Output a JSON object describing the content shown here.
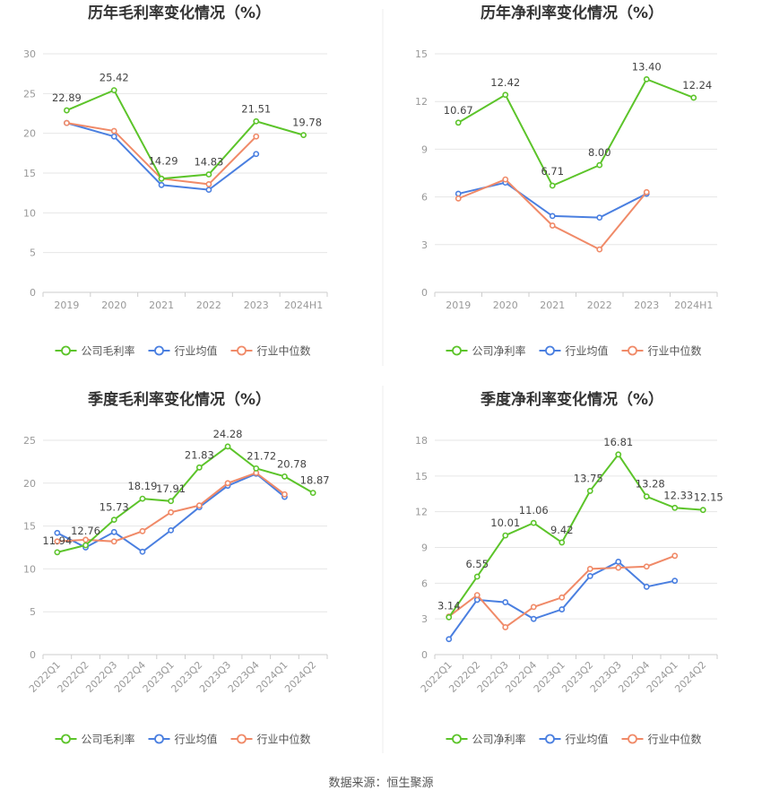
{
  "source_label": "数据来源：恒生聚源",
  "colors": {
    "company": "#5cc42a",
    "industry_avg": "#4a7fe0",
    "industry_median": "#f08a68",
    "axis": "#999999",
    "grid": "#e6e6e6",
    "title": "#333333",
    "label": "#444444"
  },
  "chart_data": [
    {
      "type": "line",
      "title": "历年毛利率变化情况（%）",
      "categories": [
        "2019",
        "2020",
        "2021",
        "2022",
        "2023",
        "2024H1"
      ],
      "ylim": [
        0,
        30
      ],
      "yticks": [
        0,
        5,
        10,
        15,
        20,
        25,
        30
      ],
      "series": [
        {
          "name": "公司毛利率",
          "role": "company",
          "values": [
            22.89,
            25.42,
            14.29,
            14.83,
            21.51,
            19.78
          ]
        },
        {
          "name": "行业均值",
          "role": "industry_avg",
          "values": [
            21.3,
            19.6,
            13.5,
            12.9,
            17.4,
            null
          ]
        },
        {
          "name": "行业中位数",
          "role": "industry_median",
          "values": [
            21.3,
            20.3,
            14.3,
            13.6,
            19.6,
            null
          ]
        }
      ],
      "data_labels": [
        "22.89",
        "25.42",
        "14.29",
        "14.83",
        "21.51",
        "19.78"
      ]
    },
    {
      "type": "line",
      "title": "历年净利率变化情况（%）",
      "categories": [
        "2019",
        "2020",
        "2021",
        "2022",
        "2023",
        "2024H1"
      ],
      "ylim": [
        0,
        15
      ],
      "yticks": [
        0,
        3,
        6,
        9,
        12,
        15
      ],
      "series": [
        {
          "name": "公司净利率",
          "role": "company",
          "values": [
            10.67,
            12.42,
            6.71,
            8.0,
            13.4,
            12.24
          ]
        },
        {
          "name": "行业均值",
          "role": "industry_avg",
          "values": [
            6.2,
            6.9,
            4.8,
            4.7,
            6.2,
            null
          ]
        },
        {
          "name": "行业中位数",
          "role": "industry_median",
          "values": [
            5.9,
            7.1,
            4.2,
            2.7,
            6.3,
            null
          ]
        }
      ],
      "data_labels": [
        "10.67",
        "12.42",
        "6.71",
        "8.00",
        "13.40",
        "12.24"
      ]
    },
    {
      "type": "line",
      "title": "季度毛利率变化情况（%）",
      "categories": [
        "2022Q1",
        "2022Q2",
        "2022Q3",
        "2022Q4",
        "2023Q1",
        "2023Q2",
        "2023Q3",
        "2023Q4",
        "2024Q1",
        "2024Q2"
      ],
      "ylim": [
        0,
        25
      ],
      "yticks": [
        0,
        5,
        10,
        15,
        20,
        25
      ],
      "series": [
        {
          "name": "公司毛利率",
          "role": "company",
          "values": [
            11.94,
            12.76,
            15.73,
            18.19,
            17.91,
            21.83,
            24.28,
            21.72,
            20.78,
            18.87
          ]
        },
        {
          "name": "行业均值",
          "role": "industry_avg",
          "values": [
            14.2,
            12.5,
            14.3,
            12.0,
            14.5,
            17.2,
            19.7,
            21.1,
            18.4,
            null
          ]
        },
        {
          "name": "行业中位数",
          "role": "industry_median",
          "values": [
            13.2,
            13.4,
            13.2,
            14.4,
            16.6,
            17.4,
            20.0,
            21.2,
            18.7,
            null
          ]
        }
      ],
      "data_labels": [
        "11.94",
        "12.76",
        "15.73",
        "18.19",
        "17.91",
        "21.83",
        "24.28",
        "21.72",
        "20.78",
        "18.87"
      ]
    },
    {
      "type": "line",
      "title": "季度净利率变化情况（%）",
      "categories": [
        "2022Q1",
        "2022Q2",
        "2022Q3",
        "2022Q4",
        "2023Q1",
        "2023Q2",
        "2023Q3",
        "2023Q4",
        "2024Q1",
        "2024Q2"
      ],
      "ylim": [
        0,
        18
      ],
      "yticks": [
        0,
        3,
        6,
        9,
        12,
        15,
        18
      ],
      "series": [
        {
          "name": "公司净利率",
          "role": "company",
          "values": [
            3.14,
            6.55,
            10.01,
            11.06,
            9.42,
            13.75,
            16.81,
            13.28,
            12.33,
            12.15
          ]
        },
        {
          "name": "行业均值",
          "role": "industry_avg",
          "values": [
            1.3,
            4.6,
            4.4,
            3.0,
            3.8,
            6.6,
            7.8,
            5.7,
            6.2,
            null
          ]
        },
        {
          "name": "行业中位数",
          "role": "industry_median",
          "values": [
            3.2,
            5.0,
            2.3,
            4.0,
            4.8,
            7.2,
            7.3,
            7.4,
            8.3,
            null
          ]
        }
      ],
      "data_labels": [
        "3.14",
        "6.55",
        "10.01",
        "11.06",
        "9.42",
        "13.75",
        "16.81",
        "13.28",
        "12.33",
        "12.15"
      ]
    }
  ]
}
